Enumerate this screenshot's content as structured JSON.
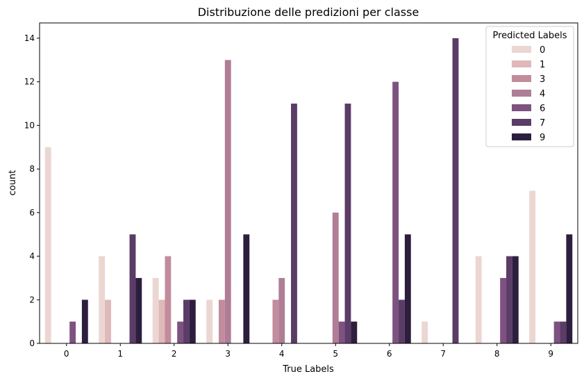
{
  "chart_data": {
    "type": "bar",
    "title": "Distribuzione delle predizioni per classe",
    "xlabel": "True Labels",
    "ylabel": "count",
    "categories": [
      "0",
      "1",
      "2",
      "3",
      "4",
      "5",
      "6",
      "7",
      "8",
      "9"
    ],
    "yticks": [
      "0",
      "2",
      "4",
      "6",
      "8",
      "10",
      "12",
      "14"
    ],
    "ylim": [
      0,
      14.7
    ],
    "grid": false,
    "legend": {
      "title": "Predicted Labels",
      "position": "top-right"
    },
    "series": [
      {
        "name": "0",
        "color": "#ebd6d2",
        "values": [
          9,
          4,
          3,
          2,
          0,
          0,
          0,
          1,
          4,
          7
        ]
      },
      {
        "name": "1",
        "color": "#dfb8b9",
        "values": [
          0,
          2,
          2,
          0,
          0,
          0,
          0,
          0,
          0,
          0
        ]
      },
      {
        "name": "3",
        "color": "#c28c9c",
        "values": [
          0,
          0,
          4,
          2,
          2,
          0,
          0,
          0,
          0,
          0
        ]
      },
      {
        "name": "4",
        "color": "#b07d96",
        "values": [
          0,
          0,
          0,
          13,
          3,
          6,
          0,
          0,
          0,
          0
        ]
      },
      {
        "name": "6",
        "color": "#7d5280",
        "values": [
          1,
          0,
          1,
          0,
          0,
          1,
          12,
          0,
          3,
          1
        ]
      },
      {
        "name": "7",
        "color": "#5b3c66",
        "values": [
          0,
          5,
          2,
          0,
          11,
          11,
          2,
          14,
          4,
          1
        ]
      },
      {
        "name": "9",
        "color": "#2d1e3e",
        "values": [
          2,
          3,
          2,
          5,
          0,
          1,
          5,
          0,
          4,
          5
        ]
      }
    ]
  }
}
